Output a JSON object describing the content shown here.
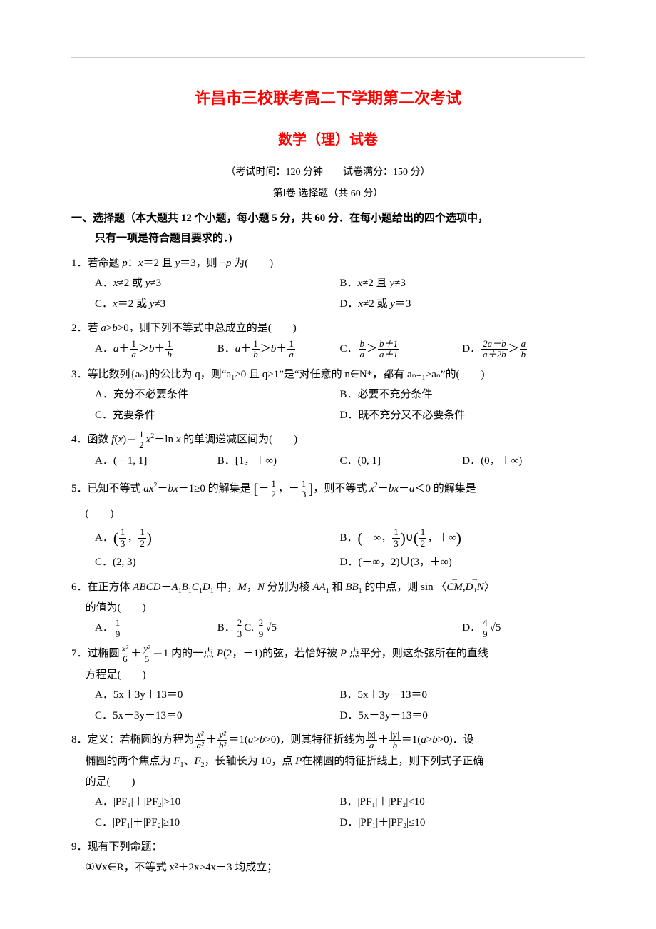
{
  "colors": {
    "title": "#ff0000",
    "text": "#000000",
    "background": "#ffffff",
    "divider": "#cccccc"
  },
  "title": "许昌市三校联考高二下学期第二次考试",
  "subtitle": "数学（理）试卷",
  "meta1": "（考试时间：120 分钟　　试卷满分：150 分）",
  "meta2": "第Ⅰ卷  选择题（共 60 分）",
  "section1_l1": "一、选择题（本大题共 12 个小题，每小题 5 分，共 60 分．在每小题给出的四个选项中，",
  "section1_l2": "只有一项是符合题目要求的．)",
  "q1": {
    "stem_a": "1．若命题 ",
    "stem_b": "p",
    "stem_c": "：",
    "stem_d": "x",
    "stem_e": "＝2 且 ",
    "stem_f": "y",
    "stem_g": "＝3，则 ¬",
    "stem_h": "p",
    "stem_i": " 为(　　)",
    "A1": "A．",
    "A2": "x",
    "A3": "≠2 或 ",
    "A4": "y",
    "A5": "≠3",
    "B1": "B．",
    "B2": "x",
    "B3": "≠2 且 ",
    "B4": "y",
    "B5": "≠3",
    "C1": "C．",
    "C2": "x",
    "C3": "＝2 或 ",
    "C4": "y",
    "C5": "≠3",
    "D1": "D．",
    "D2": "x",
    "D3": "≠2 或 ",
    "D4": "y",
    "D5": "＝3"
  },
  "q2": {
    "stem_a": "2．若 ",
    "stem_b": "a",
    "stem_c": ">",
    "stem_d": "b",
    "stem_e": ">0，则下列不等式中总成立的是(　　)",
    "A_pre": "A．",
    "A_a": "a",
    "A_plus": "＋",
    "A_f1n": "1",
    "A_f1d": "a",
    "A_gt": "＞",
    "A_b": "b",
    "A_plus2": "＋",
    "A_f2n": "1",
    "A_f2d": "b",
    "B_pre": "B．",
    "B_a": "a",
    "B_plus": "＋",
    "B_f1n": "1",
    "B_f1d": "b",
    "B_gt": "＞",
    "B_b": "b",
    "B_plus2": "＋",
    "B_f2n": "1",
    "B_f2d": "a",
    "C_pre": "C．",
    "C_f1n": "b",
    "C_f1d": "a",
    "C_gt": "＞",
    "C_f2n": "b＋1",
    "C_f2d": "a＋1",
    "D_pre": "D．",
    "D_f1n": "2a－b",
    "D_f1d": "a＋2b",
    "D_gt": "＞",
    "D_f2n": "a",
    "D_f2d": "b"
  },
  "q3": {
    "stem": "3．等比数列{aₙ}的公比为 q，则“a₁>0 且 q>1”是“对任意的 n∈N*，都有 aₙ₊₁>aₙ”的(　　)",
    "A": "A．充分不必要条件",
    "B": "B．必要不充分条件",
    "C": "C．充要条件",
    "D": "D．既不充分又不必要条件"
  },
  "q4": {
    "stem_a": "4．函数 ",
    "stem_b": "f",
    "stem_c": "(",
    "stem_d": "x",
    "stem_e": ")＝",
    "fn": "1",
    "fd": "2",
    "stem_f": "x",
    "stem_sup": "2",
    "stem_g": "－ln ",
    "stem_h": "x",
    "stem_i": " 的单调递减区间为(　　)",
    "A": "A．(－1, 1]",
    "B": "B．[1，＋∞)",
    "C": "C．(0, 1]",
    "D": "D．(0，＋∞)"
  },
  "q5": {
    "stem_a": "5．已知不等式 ",
    "ax": "ax",
    "sup": "2",
    "stem_b": "－",
    "bx": "bx",
    "stem_c": "－1≥0 的解集是",
    "lb": "[",
    "f1n": "1",
    "f1d": "2",
    "neg1": "－",
    "comma": "，",
    "neg2": "－",
    "f2n": "1",
    "f2d": "3",
    "rb": "]",
    "stem_d": "，则不等式 ",
    "x": "x",
    "sup2": "2",
    "stem_e": "－",
    "bx2": "bx",
    "stem_f": "－",
    "a": "a",
    "stem_g": "＜0 的解集是",
    "paren": "(　　)",
    "A_pre": "A．",
    "A_lb": "(",
    "A_f1n": "1",
    "A_f1d": "3",
    "A_comma": "，",
    "A_f2n": "1",
    "A_f2d": "2",
    "A_rb": ")",
    "B_pre": "B．",
    "B_l": "(",
    "B_neginf": "－∞，",
    "B_f1n": "1",
    "B_f1d": "3",
    "B_rp": ")",
    "B_cup": "∪",
    "B_lp": "(",
    "B_f2n": "1",
    "B_f2d": "2",
    "B_posinf": "，＋∞",
    "B_r": ")",
    "C": "C．(2, 3)",
    "D": "D．(－∞，2)∪(3，＋∞)"
  },
  "q6": {
    "stem_a": "6．在正方体 ",
    "ABCD": "ABCD",
    "dash": "－",
    "A1": "A",
    "s1": "1",
    "B1": "B",
    "s1b": "1",
    "C1": "C",
    "s1c": "1",
    "D1": "D",
    "s1d": "1",
    "stem_b": " 中，",
    "M": "M",
    "stem_c": "，",
    "N": "N",
    "stem_d": " 分别为棱 ",
    "AA1": "AA",
    "s1e": "1",
    "stem_e": " 和 ",
    "BB1": "BB",
    "s1f": "1",
    "stem_f": " 的中点，则 sin ",
    "ang_l": "〈",
    "CM": "CM",
    "ang_c": ",",
    "DN": "D₁N",
    "ang_r": "〉",
    "stem_g": "的值为(　　)",
    "A_pre": "A．",
    "A_n": "1",
    "A_d": "9",
    "B_pre": "B．",
    "B_n": "2",
    "B_d": "3",
    "C_pre": "C. ",
    "C_n": "2",
    "C_d": "9",
    "C_root": "√5",
    "D_pre": "D．",
    "D_n": "4",
    "D_d": "9",
    "D_root": "√5"
  },
  "q7": {
    "stem_a": "7．过椭圆",
    "f1n": "x²",
    "f1d": "6",
    "plus": "＋",
    "f2n": "y²",
    "f2d": "5",
    "eq": "＝1 内的一点 ",
    "P": "P",
    "stem_b": "(2，－1)的弦，若恰好被 ",
    "P2": "P",
    "stem_c": " 点平分，则这条弦所在的直线",
    "stem_d": "方程是(　　)",
    "A": "A．5x＋3y＋13＝0",
    "B": "B．5x＋3y－13＝0",
    "C": "C．5x－3y＋13＝0",
    "D": "D．5x－3y－13＝0"
  },
  "q8": {
    "stem_a": "8．定义：若椭圆的方程为",
    "f1n": "x²",
    "f1d": "a²",
    "plus": "＋",
    "f2n": "y²",
    "f2d": "b²",
    "eq": "＝1(",
    "ab": "a",
    "gt": ">",
    "b": "b",
    "gt0": ">0)，则其特征折线为",
    "f3n": "|x|",
    "f3d": "a",
    "plus2": "＋",
    "f4n": "|y|",
    "f4d": "b",
    "eq2": "＝1(",
    "ab2": "a",
    "gt2": ">",
    "b2": "b",
    "gt02": ">0)．设",
    "stem_b": "椭圆的两个焦点为 ",
    "F1": "F",
    "s1": "1",
    "stem_c": "、",
    "F2": "F",
    "s2": "2",
    "stem_d": "，长轴长为 10，点 ",
    "P": "P",
    "stem_e": "在椭圆的特征折线上，则下列式子正确",
    "stem_f": "的是(　　)",
    "A": "A．|PF₁|＋|PF₂|>10",
    "B": "B．|PF₁|＋|PF₂|<10",
    "C": "C．|PF₁|＋|PF₂|≥10",
    "D": "D．|PF₁|＋|PF₂|≤10"
  },
  "q9": {
    "stem": "9．现有下列命题：",
    "item1": "①∀x∈R，不等式 x²＋2x>4x－3 均成立；"
  }
}
